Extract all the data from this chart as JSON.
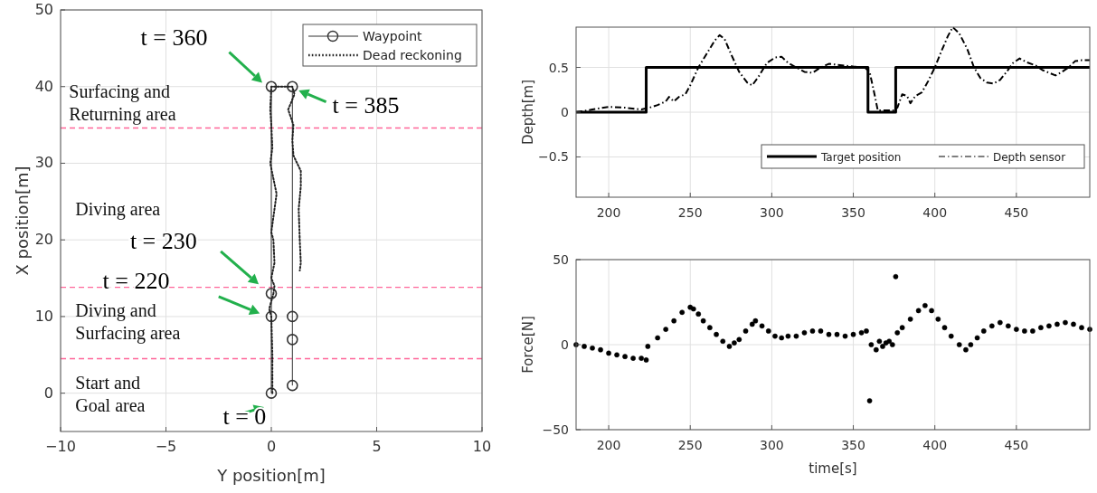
{
  "chart_data": [
    {
      "type": "line",
      "xlabel": "Y position[m]",
      "ylabel": "X position[m]",
      "xlim": [
        -10,
        10
      ],
      "ylim": [
        -5,
        50
      ],
      "xticks": [
        {
          "value": -10,
          "label": "−10"
        },
        {
          "value": -5,
          "label": "−5"
        },
        0,
        5,
        10
      ],
      "yticks": [
        0,
        10,
        20,
        30,
        40,
        50
      ],
      "grid": true,
      "legend": "top right",
      "series": [
        {
          "name": "Waypoint",
          "color": "#333333",
          "marker": "circle",
          "line_style": "solid",
          "x": [
            0,
            0,
            0,
            0,
            1,
            1,
            1,
            1
          ],
          "values": [
            0,
            10,
            13,
            40,
            40,
            10,
            7,
            1
          ]
        },
        {
          "name": "Dead reckoning",
          "color": "#222222",
          "marker": "none",
          "line_style": "dotted",
          "x": [
            0.05,
            0.05,
            0,
            -0.1,
            0.1,
            0.15,
            0,
            0.15,
            0.1,
            0,
            0.1,
            0.25,
            0.1,
            -0.05,
            0.05,
            0,
            -0.05,
            0,
            1,
            1.1,
            0.8,
            1.05,
            1.0,
            1.05,
            1.4,
            1.4,
            1.3,
            1.35,
            1.4,
            1.35
          ],
          "values": [
            0,
            5,
            10,
            11,
            13,
            14,
            15,
            17,
            20,
            21,
            23,
            26,
            28,
            30,
            32,
            35,
            37,
            40,
            40,
            39,
            37,
            35,
            33,
            31,
            29,
            27,
            24,
            20,
            17,
            16
          ]
        }
      ],
      "ref_lines": [
        {
          "axis": "y",
          "value": 34.6,
          "color": "#ff6699",
          "line_style": "dashed"
        },
        {
          "axis": "y",
          "value": 13.8,
          "color": "#ff6699",
          "line_style": "dashed"
        },
        {
          "axis": "y",
          "value": 4.5,
          "color": "#ff6699",
          "line_style": "dashed"
        }
      ],
      "annotations": [
        "Surfacing and\nReturning area",
        "Diving area",
        "Diving and\nSurfacing area",
        "Start and\nGoal area",
        "t = 360",
        "t = 385",
        "t = 230",
        "t = 220",
        "t = 0"
      ]
    },
    {
      "type": "line",
      "ylabel": "Depth[m]",
      "xlim": [
        180,
        495
      ],
      "ylim": [
        -0.95,
        0.95
      ],
      "xticks": [
        200,
        250,
        300,
        350,
        400,
        450
      ],
      "yticks": [
        {
          "value": -0.5,
          "label": "−0.5"
        },
        0,
        0.5
      ],
      "grid": true,
      "legend": "bottom right",
      "series": [
        {
          "name": "Target position",
          "color": "#000000",
          "line_style": "solid",
          "x": [
            180,
            223,
            223,
            359,
            359,
            376,
            376,
            495
          ],
          "values": [
            0,
            0,
            0.5,
            0.5,
            0,
            0,
            0.5,
            0.5
          ]
        },
        {
          "name": "Depth sensor",
          "color": "#000000",
          "line_style": "dashed",
          "x": [
            180,
            190,
            200,
            210,
            220,
            225,
            230,
            235,
            237,
            240,
            243,
            247,
            250,
            255,
            260,
            265,
            268,
            271,
            275,
            280,
            285,
            288,
            292,
            297,
            302,
            306,
            310,
            315,
            320,
            325,
            330,
            335,
            340,
            345,
            350,
            357,
            360,
            363,
            365,
            370,
            375,
            377,
            380,
            383,
            385,
            388,
            392,
            396,
            400,
            404,
            408,
            411,
            415,
            420,
            424,
            428,
            432,
            436,
            440,
            444,
            448,
            452,
            456,
            462,
            466,
            470,
            474,
            478,
            482,
            486,
            490,
            495
          ],
          "values": [
            0,
            0.03,
            0.06,
            0.05,
            0.03,
            0.05,
            0.08,
            0.12,
            0.17,
            0.12,
            0.17,
            0.2,
            0.3,
            0.5,
            0.65,
            0.8,
            0.86,
            0.82,
            0.65,
            0.45,
            0.33,
            0.3,
            0.4,
            0.55,
            0.61,
            0.62,
            0.55,
            0.5,
            0.45,
            0.44,
            0.5,
            0.54,
            0.53,
            0.52,
            0.51,
            0.5,
            0.45,
            0.2,
            0.02,
            0.02,
            0.02,
            0.05,
            0.2,
            0.18,
            0.1,
            0.18,
            0.22,
            0.35,
            0.5,
            0.68,
            0.85,
            0.95,
            0.88,
            0.7,
            0.5,
            0.38,
            0.33,
            0.32,
            0.36,
            0.45,
            0.55,
            0.6,
            0.56,
            0.52,
            0.47,
            0.44,
            0.41,
            0.45,
            0.5,
            0.57,
            0.58,
            0.58
          ]
        }
      ]
    },
    {
      "type": "scatter",
      "xlabel": "time[s]",
      "ylabel": "Force[N]",
      "xlim": [
        180,
        495
      ],
      "ylim": [
        -50,
        50
      ],
      "xticks": [
        200,
        250,
        300,
        350,
        400,
        450
      ],
      "yticks": [
        {
          "value": -50,
          "label": "−50"
        },
        0,
        50
      ],
      "grid": true,
      "marker": "circle",
      "series": [
        {
          "color": "#000000",
          "x": [
            180,
            185,
            190,
            195,
            200,
            205,
            210,
            215,
            220,
            223,
            224,
            230,
            235,
            240,
            245,
            250,
            252,
            255,
            258,
            262,
            266,
            270,
            274,
            277,
            280,
            284,
            288,
            290,
            294,
            298,
            302,
            306,
            310,
            315,
            320,
            325,
            330,
            335,
            340,
            345,
            350,
            355,
            358,
            360,
            361,
            364,
            366,
            368,
            370,
            372,
            374,
            376,
            377,
            380,
            385,
            390,
            394,
            398,
            402,
            406,
            410,
            415,
            419,
            422,
            426,
            430,
            435,
            440,
            445,
            450,
            455,
            460,
            465,
            470,
            475,
            480,
            485,
            490,
            495
          ],
          "values": [
            0,
            -1,
            -2,
            -3,
            -5,
            -6,
            -7,
            -8,
            -8,
            -9,
            -1,
            4,
            9,
            14,
            19,
            22,
            21,
            18,
            14,
            10,
            6,
            2,
            -1,
            1,
            3,
            8,
            12,
            14,
            11,
            8,
            5,
            4,
            5,
            5,
            7,
            8,
            8,
            6,
            6,
            5,
            6,
            7,
            8,
            -33,
            0,
            -3,
            2,
            -1,
            1,
            2,
            0,
            40,
            7,
            10,
            15,
            20,
            23,
            20,
            15,
            10,
            5,
            0,
            -3,
            0,
            4,
            8,
            11,
            13,
            11,
            9,
            8,
            8,
            10,
            11,
            12,
            13,
            12,
            10,
            9
          ]
        }
      ]
    }
  ]
}
